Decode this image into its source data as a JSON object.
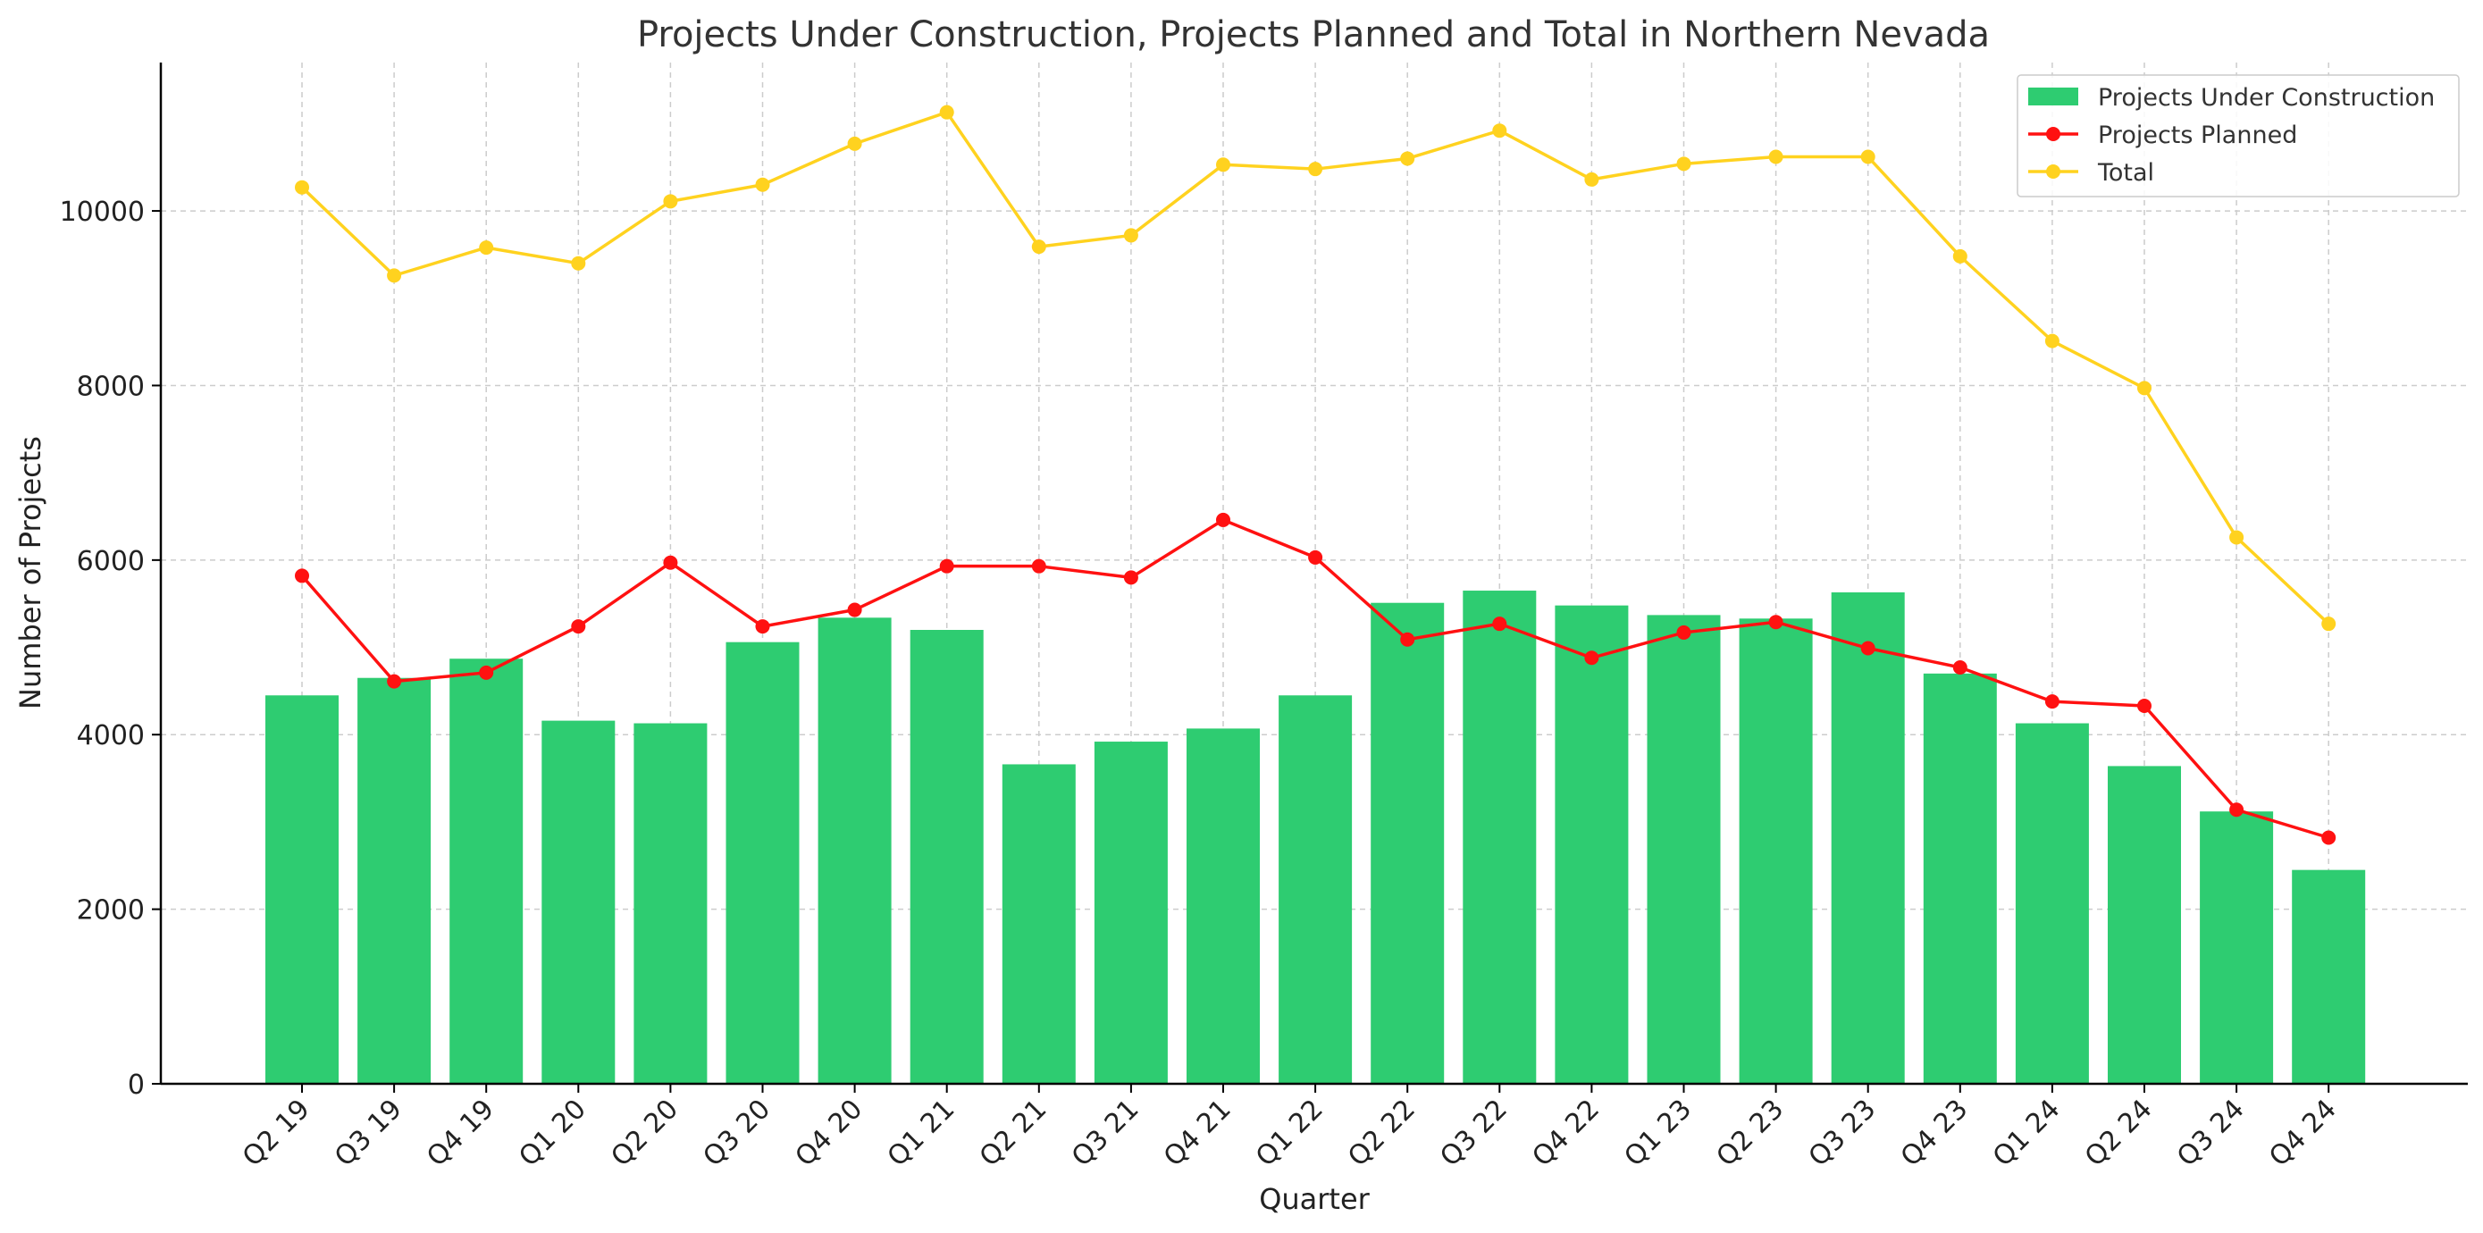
{
  "chart_data": {
    "type": "bar",
    "title": "Projects Under Construction, Projects Planned and Total in Northern Nevada",
    "xlabel": "Quarter",
    "ylabel": "Number of Projects",
    "ylim": [
      0,
      11700
    ],
    "yticks": [
      0,
      2000,
      4000,
      6000,
      8000,
      10000
    ],
    "grid": true,
    "legend_position": "top-right",
    "categories": [
      "Q2 19",
      "Q3 19",
      "Q4 19",
      "Q1 20",
      "Q2 20",
      "Q3 20",
      "Q4 20",
      "Q1 21",
      "Q2 21",
      "Q3 21",
      "Q4 21",
      "Q1 22",
      "Q2 22",
      "Q3 22",
      "Q4 22",
      "Q1 23",
      "Q2 23",
      "Q3 23",
      "Q4 23",
      "Q1 24",
      "Q2 24",
      "Q3 24",
      "Q4 24"
    ],
    "series": [
      {
        "name": "Projects Under Construction",
        "type": "bar",
        "color": "#2ecc71",
        "values": [
          4450,
          4650,
          4870,
          4160,
          4130,
          5060,
          5340,
          5200,
          3660,
          3920,
          4070,
          4450,
          5510,
          5650,
          5480,
          5370,
          5330,
          5630,
          4700,
          4130,
          3640,
          3120,
          2450
        ]
      },
      {
        "name": "Projects Planned",
        "type": "line",
        "color": "#ff1111",
        "values": [
          5820,
          4610,
          4710,
          5240,
          5970,
          5240,
          5430,
          5930,
          5930,
          5800,
          6460,
          6030,
          5090,
          5270,
          4880,
          5170,
          5290,
          4990,
          4770,
          4380,
          4330,
          3140,
          2820
        ]
      },
      {
        "name": "Total",
        "type": "line",
        "color": "#ffd21f",
        "values": [
          10270,
          9260,
          9580,
          9400,
          10110,
          10300,
          10770,
          11130,
          9590,
          9720,
          10530,
          10480,
          10600,
          10920,
          10360,
          10540,
          10620,
          10620,
          9480,
          8510,
          7970,
          6260,
          5270
        ]
      }
    ]
  }
}
